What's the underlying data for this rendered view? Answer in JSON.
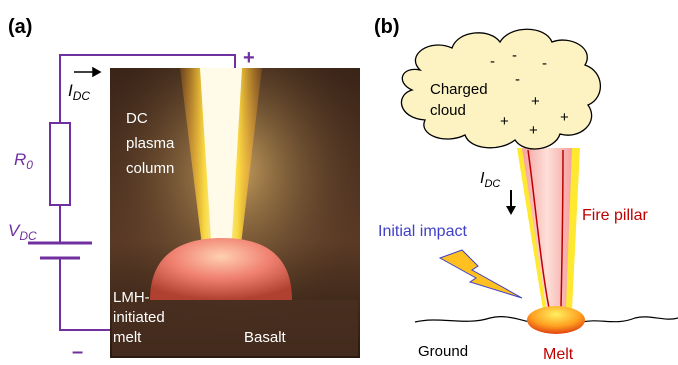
{
  "panel_a": {
    "label": "(a)",
    "current": {
      "symbol": "I",
      "subscript": "DC"
    },
    "positive_terminal": "+",
    "negative_terminal": "–",
    "resistor": {
      "symbol": "R",
      "subscript": "0"
    },
    "voltage": {
      "symbol": "V",
      "subscript": "DC"
    },
    "photo_labels": {
      "column": [
        "DC",
        "plasma",
        "column"
      ],
      "melt": [
        "LMH-",
        "initiated",
        "melt"
      ],
      "basalt": "Basalt"
    }
  },
  "panel_b": {
    "label": "(b)",
    "cloud_label": [
      "Charged",
      "cloud"
    ],
    "cloud_charges": {
      "negative": [
        "-",
        "-",
        "-",
        "-"
      ],
      "positive": [
        "+",
        "+",
        "+",
        "+"
      ]
    },
    "current": {
      "symbol": "I",
      "subscript": "DC"
    },
    "initial_impact": "Initial impact",
    "fire_pillar": "Fire pillar",
    "ground": "Ground",
    "melt": "Melt"
  }
}
